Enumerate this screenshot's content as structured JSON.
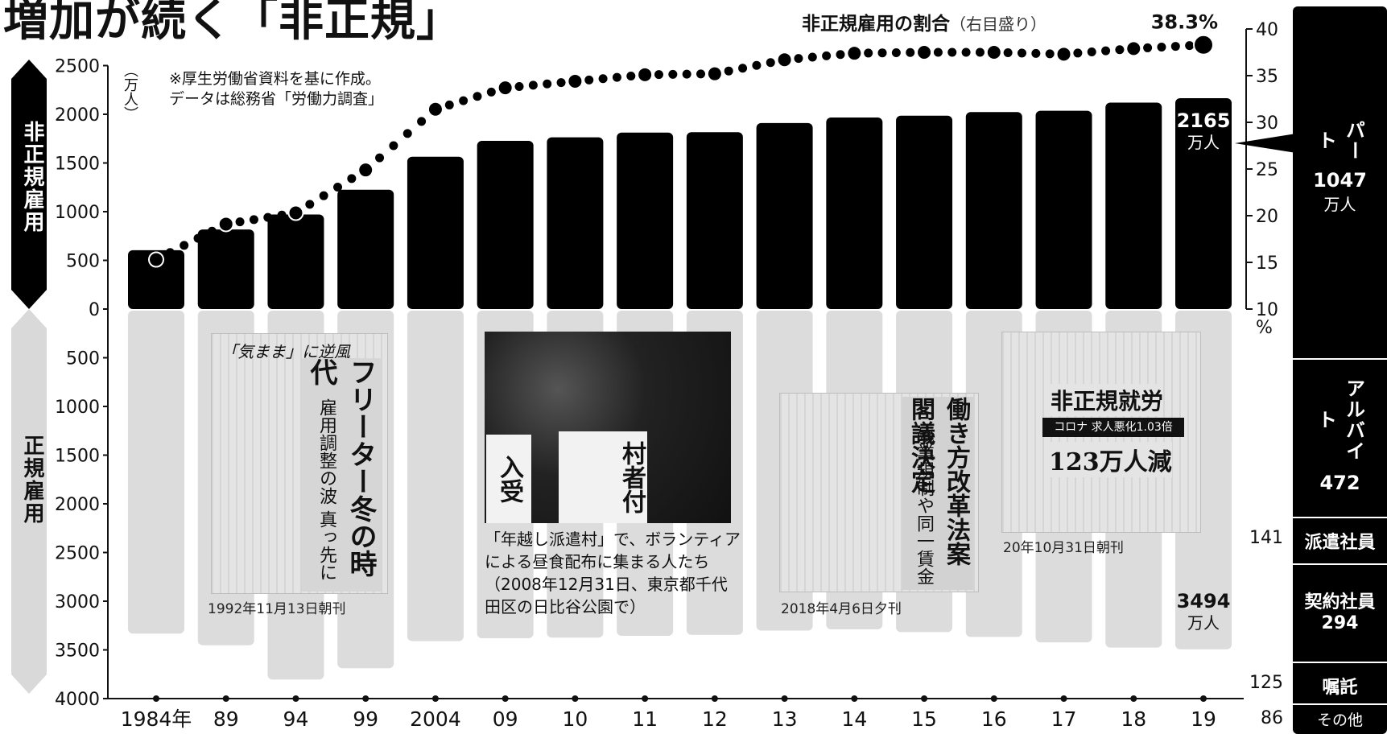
{
  "title": "増加が続く「非正規」",
  "rate_label": "非正規雇用の割合",
  "rate_sub": "（右目盛り）",
  "rate_latest": "38.3%",
  "left_unit": "（万人）",
  "right_unit": "%",
  "note": "※厚生労働省資料を基に作成。データは総務省「労働力調査」",
  "upper_axis_label": "非正規雇用",
  "lower_axis_label": "正規雇用",
  "nonreg_end_label": {
    "value": "2165",
    "unit": "万人"
  },
  "reg_end_label": {
    "value": "3494",
    "unit": "万人"
  },
  "clip1": {
    "headline": "「気まま」に逆風",
    "big": "フリーター冬の時代",
    "sub": "雇用調整の波 真っ先に",
    "date": "1992年11月13日朝刊"
  },
  "photo": {
    "sign1": "入受",
    "sign2": "村者付",
    "caption": "「年越し派遣村」で、ボランティアによる昼食配布に集まる人たち（2008年12月31日、東京都千代田区の日比谷公園で）"
  },
  "clip3": {
    "big": "働き方改革法案 閣議決定",
    "sub": "残業規制や同一賃金",
    "date": "2018年4月6日夕刊"
  },
  "clip4": {
    "title": "非正規就労",
    "band": "コロナ 求人悪化1.03倍",
    "big": "123万人減",
    "date": "20年10月31日朝刊"
  },
  "breakdown": [
    {
      "label": "パート",
      "value": "1047",
      "unit": "万人"
    },
    {
      "label": "アルバイト",
      "value": "472",
      "unit": ""
    },
    {
      "label": "派遣社員",
      "value": "141",
      "unit": ""
    },
    {
      "label": "契約社員",
      "value": "294",
      "unit": ""
    },
    {
      "label": "嘱託",
      "value": "125",
      "unit": ""
    },
    {
      "label": "その他",
      "value": "86",
      "unit": ""
    }
  ],
  "chart_data": {
    "type": "bar",
    "title": "増加が続く「非正規」",
    "categories": [
      "1984年",
      "89",
      "94",
      "99",
      "2004",
      "09",
      "10",
      "11",
      "12",
      "13",
      "14",
      "15",
      "16",
      "17",
      "18",
      "19"
    ],
    "series": [
      {
        "name": "非正規雇用",
        "values": [
          604,
          817,
          971,
          1225,
          1564,
          1727,
          1763,
          1812,
          1816,
          1910,
          1967,
          1986,
          2023,
          2036,
          2120,
          2165
        ]
      },
      {
        "name": "正規雇用",
        "values": [
          3333,
          3452,
          3805,
          3688,
          3410,
          3380,
          3374,
          3355,
          3345,
          3302,
          3288,
          3317,
          3367,
          3423,
          3476,
          3494
        ]
      },
      {
        "name": "非正規雇用の割合",
        "axis": "right",
        "values": [
          15.3,
          19.1,
          20.3,
          24.9,
          31.4,
          33.7,
          34.4,
          35.1,
          35.2,
          36.7,
          37.4,
          37.5,
          37.5,
          37.3,
          37.9,
          38.3
        ]
      }
    ],
    "left_axis_top": {
      "ticks": [
        0,
        500,
        1000,
        1500,
        2000,
        2500
      ],
      "range": [
        0,
        2500
      ]
    },
    "left_axis_bottom": {
      "ticks": [
        500,
        1000,
        1500,
        2000,
        2500,
        3000,
        3500,
        4000
      ],
      "range": [
        0,
        4000
      ]
    },
    "right_axis": {
      "ticks": [
        10,
        15,
        20,
        25,
        30,
        35,
        40
      ],
      "range": [
        10,
        40
      ]
    },
    "grid": false,
    "legend": "none"
  }
}
